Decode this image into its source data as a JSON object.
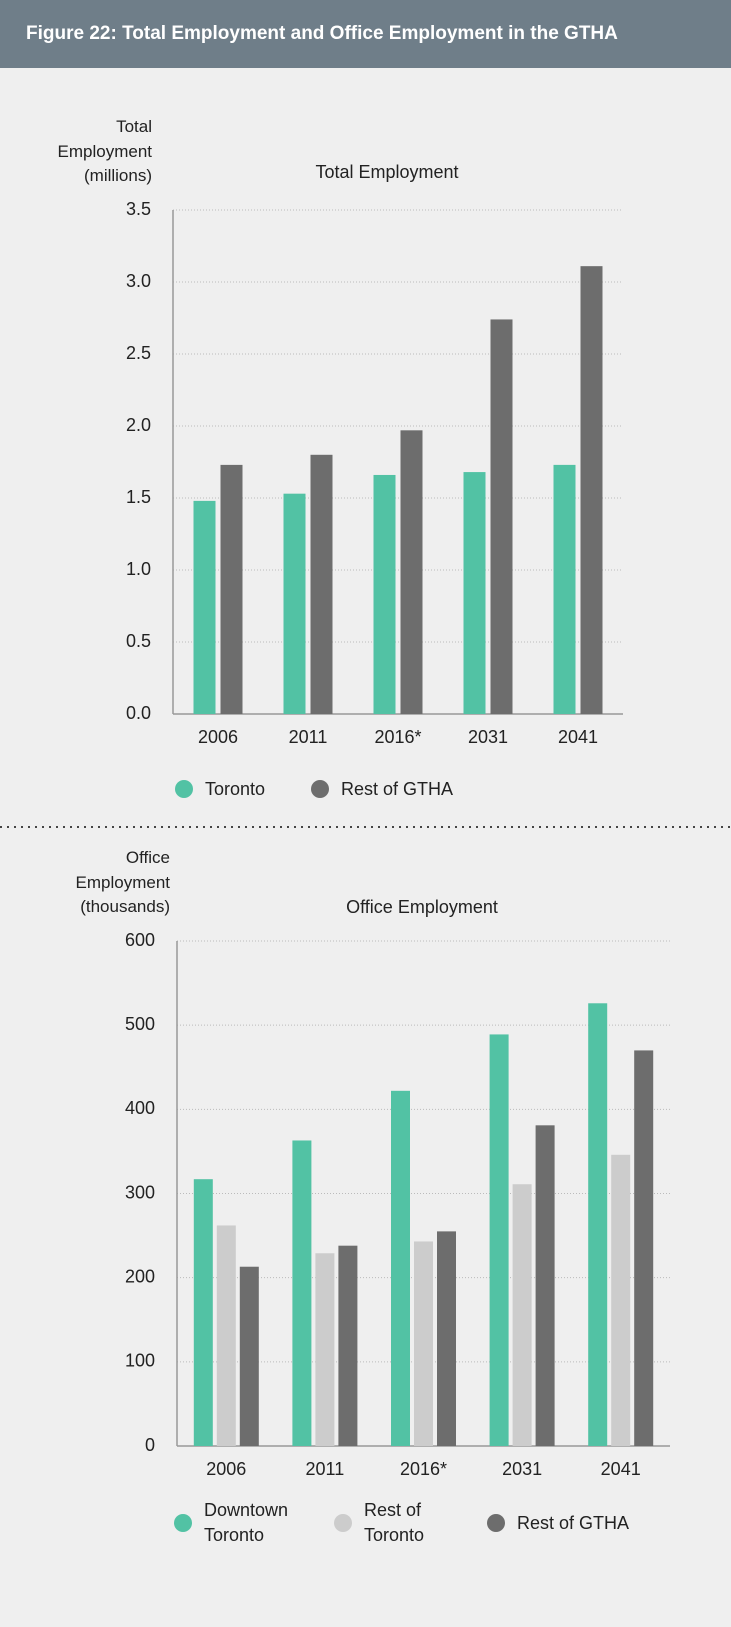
{
  "header": {
    "title": "Figure 22: Total Employment and Office Employment in the GTHA"
  },
  "chart_data": [
    {
      "type": "bar",
      "title": "Total Employment",
      "y_label": "Total Employment (millions)",
      "categories": [
        "2006",
        "2011",
        "2016*",
        "2031",
        "2041"
      ],
      "series": [
        {
          "name": "Toronto",
          "color": "#52c2a4",
          "values": [
            1.48,
            1.53,
            1.66,
            1.68,
            1.73
          ]
        },
        {
          "name": "Rest of GTHA",
          "color": "#6d6d6d",
          "values": [
            1.73,
            1.8,
            1.97,
            2.74,
            3.11
          ]
        }
      ],
      "ylim": [
        0,
        3.5
      ],
      "yticks": [
        {
          "value": 0,
          "label": "0.0"
        },
        0.5,
        {
          "value": 1,
          "label": "1.0"
        },
        1.5,
        {
          "value": 2,
          "label": "2.0"
        },
        2.5,
        {
          "value": 3,
          "label": "3.0"
        },
        3.5
      ],
      "grid": true
    },
    {
      "type": "bar",
      "title": "Office Employment",
      "y_label": "Office Employment (thousands)",
      "categories": [
        "2006",
        "2011",
        "2016*",
        "2031",
        "2041"
      ],
      "series": [
        {
          "name": "Downtown Toronto",
          "color": "#52c2a4",
          "values": [
            317,
            363,
            422,
            489,
            526
          ]
        },
        {
          "name": "Rest of Toronto",
          "color": "#cccccc",
          "values": [
            262,
            229,
            243,
            311,
            346
          ]
        },
        {
          "name": "Rest of GTHA",
          "color": "#6d6d6d",
          "values": [
            213,
            238,
            255,
            381,
            470
          ]
        }
      ],
      "ylim": [
        0,
        600
      ],
      "yticks": [
        0,
        100,
        200,
        300,
        400,
        500,
        600
      ],
      "grid": true
    }
  ]
}
